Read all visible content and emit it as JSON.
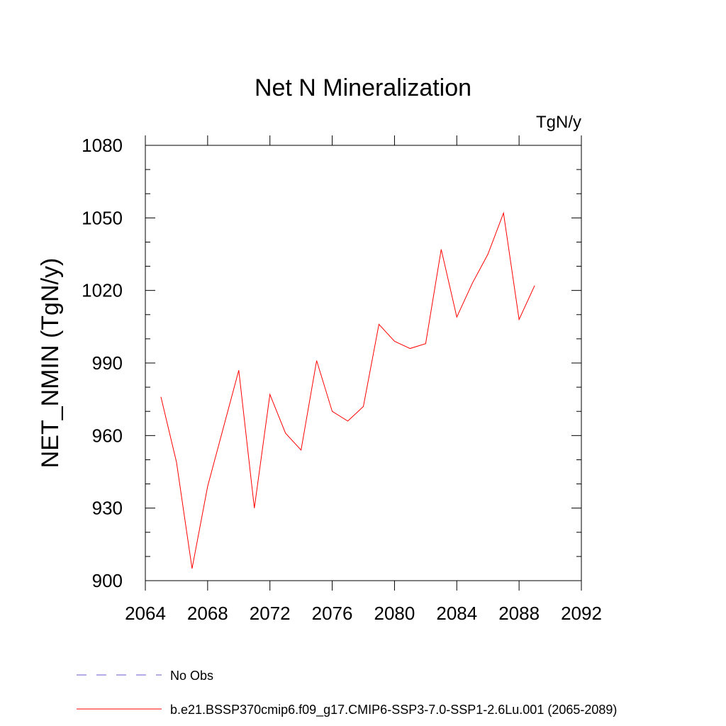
{
  "chart_data": {
    "type": "line",
    "title": "Net N Mineralization",
    "units_label": "TgN/y",
    "xlabel": "",
    "ylabel": "NET_NMIN  (TgN/y)",
    "xlim": [
      2064,
      2092
    ],
    "ylim": [
      900,
      1080
    ],
    "x_ticks": [
      2064,
      2068,
      2072,
      2076,
      2080,
      2084,
      2088,
      2092
    ],
    "y_ticks": [
      900,
      930,
      960,
      990,
      1020,
      1050,
      1080
    ],
    "series": [
      {
        "name": "b.e21.BSSP370cmip6.f09_g17.CMIP6-SSP3-7.0-SSP1-2.6Lu.001 (2065-2089)",
        "color": "#ff0000",
        "dash": "solid",
        "x": [
          2065,
          2066,
          2067,
          2068,
          2069,
          2070,
          2071,
          2072,
          2073,
          2074,
          2075,
          2076,
          2077,
          2078,
          2079,
          2080,
          2081,
          2082,
          2083,
          2084,
          2085,
          2086,
          2087,
          2088,
          2089
        ],
        "y": [
          976,
          949,
          905,
          939,
          963,
          987,
          930,
          977,
          961,
          954,
          991,
          970,
          966,
          972,
          1006,
          999,
          996,
          998,
          1037,
          1009,
          1023,
          1035,
          1052,
          1008,
          1022
        ]
      }
    ],
    "legend": [
      {
        "label": "No Obs",
        "color": "#6a5acd",
        "dash": "dashed"
      },
      {
        "label": "b.e21.BSSP370cmip6.f09_g17.CMIP6-SSP3-7.0-SSP1-2.6Lu.001 (2065-2089)",
        "color": "#ff0000",
        "dash": "solid"
      }
    ]
  }
}
